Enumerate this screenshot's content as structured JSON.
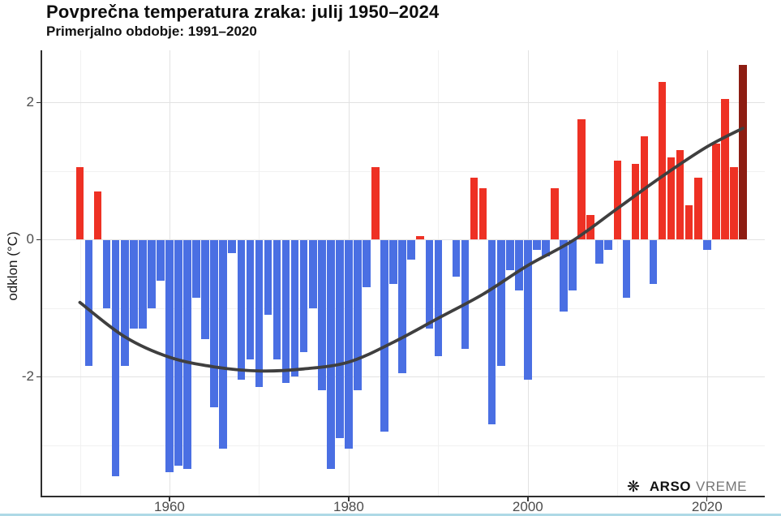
{
  "page": {
    "title": "Povprečna temperatura zraka: julij 1950–2024",
    "subtitle": "Primerjalno obdobje: 1991–2020",
    "branding": {
      "icon": "weather-star-icon",
      "glyph": "❋",
      "name_bold": "ARSO",
      "name_light": "VREME"
    }
  },
  "chart_data": {
    "type": "bar",
    "title": "Povprečna temperatura zraka: julij 1950–2024",
    "subtitle": "Primerjalno obdobje: 1991–2020",
    "xlabel": "",
    "ylabel": "odklon (°C)",
    "xlim": [
      1949,
      2025.5
    ],
    "ylim": [
      -3.7,
      2.8
    ],
    "grid": true,
    "legend": false,
    "x_major_ticks": [
      1960,
      1980,
      2000,
      2020
    ],
    "x_minor_ticks": [
      1950,
      1970,
      1990,
      2010
    ],
    "y_major_ticks": [
      2,
      0,
      -2
    ],
    "y_minor_ticks": [
      1,
      -1,
      -3
    ],
    "years": [
      1950,
      1951,
      1952,
      1953,
      1954,
      1955,
      1956,
      1957,
      1958,
      1959,
      1960,
      1961,
      1962,
      1963,
      1964,
      1965,
      1966,
      1967,
      1968,
      1969,
      1970,
      1971,
      1972,
      1973,
      1974,
      1975,
      1976,
      1977,
      1978,
      1979,
      1980,
      1981,
      1982,
      1983,
      1984,
      1985,
      1986,
      1987,
      1988,
      1989,
      1990,
      1991,
      1992,
      1993,
      1994,
      1995,
      1996,
      1997,
      1998,
      1999,
      2000,
      2001,
      2002,
      2003,
      2004,
      2005,
      2006,
      2007,
      2008,
      2009,
      2010,
      2011,
      2012,
      2013,
      2014,
      2015,
      2016,
      2017,
      2018,
      2019,
      2020,
      2021,
      2022,
      2023,
      2024
    ],
    "values": [
      1.05,
      -1.85,
      0.7,
      -1.0,
      -3.45,
      -1.85,
      -1.3,
      -1.3,
      -1.0,
      -0.6,
      -3.4,
      -3.3,
      -3.35,
      -0.85,
      -1.45,
      -2.45,
      -3.05,
      -0.2,
      -2.05,
      -1.75,
      -2.15,
      -1.1,
      -1.75,
      -2.1,
      -2.0,
      -1.65,
      -1.0,
      -2.2,
      -3.35,
      -2.9,
      -3.05,
      -2.2,
      -0.7,
      1.05,
      -2.8,
      -0.65,
      -1.95,
      -0.3,
      0.05,
      -1.3,
      -1.7,
      0.0,
      -0.55,
      -1.6,
      0.9,
      0.75,
      -2.7,
      -1.85,
      -0.45,
      -0.75,
      -2.05,
      -0.15,
      -0.25,
      0.75,
      -1.05,
      -0.75,
      1.75,
      0.35,
      -0.35,
      -0.15,
      1.15,
      -0.85,
      1.1,
      1.5,
      -0.65,
      2.3,
      1.2,
      1.3,
      0.5,
      0.9,
      -0.15,
      1.4,
      2.05,
      1.05,
      2.55
    ],
    "highlight_year": 2024,
    "colors": {
      "positive": "#ee3124",
      "negative": "#4a6fe3",
      "highlight": "#8d1d12",
      "trend": "#3f3f3f",
      "grid_major": "#e2e2e2",
      "grid_minor": "#f1f1f1",
      "axis": "#2e2e2e",
      "tick_label": "#4c4c4c"
    },
    "trend": {
      "type": "smooth",
      "points": [
        [
          1950,
          -0.92
        ],
        [
          1955,
          -1.42
        ],
        [
          1960,
          -1.72
        ],
        [
          1965,
          -1.86
        ],
        [
          1970,
          -1.92
        ],
        [
          1975,
          -1.89
        ],
        [
          1980,
          -1.79
        ],
        [
          1985,
          -1.5
        ],
        [
          1990,
          -1.15
        ],
        [
          1995,
          -0.8
        ],
        [
          2000,
          -0.38
        ],
        [
          2005,
          -0.02
        ],
        [
          2010,
          0.45
        ],
        [
          2015,
          0.92
        ],
        [
          2020,
          1.35
        ],
        [
          2024,
          1.62
        ]
      ]
    }
  }
}
